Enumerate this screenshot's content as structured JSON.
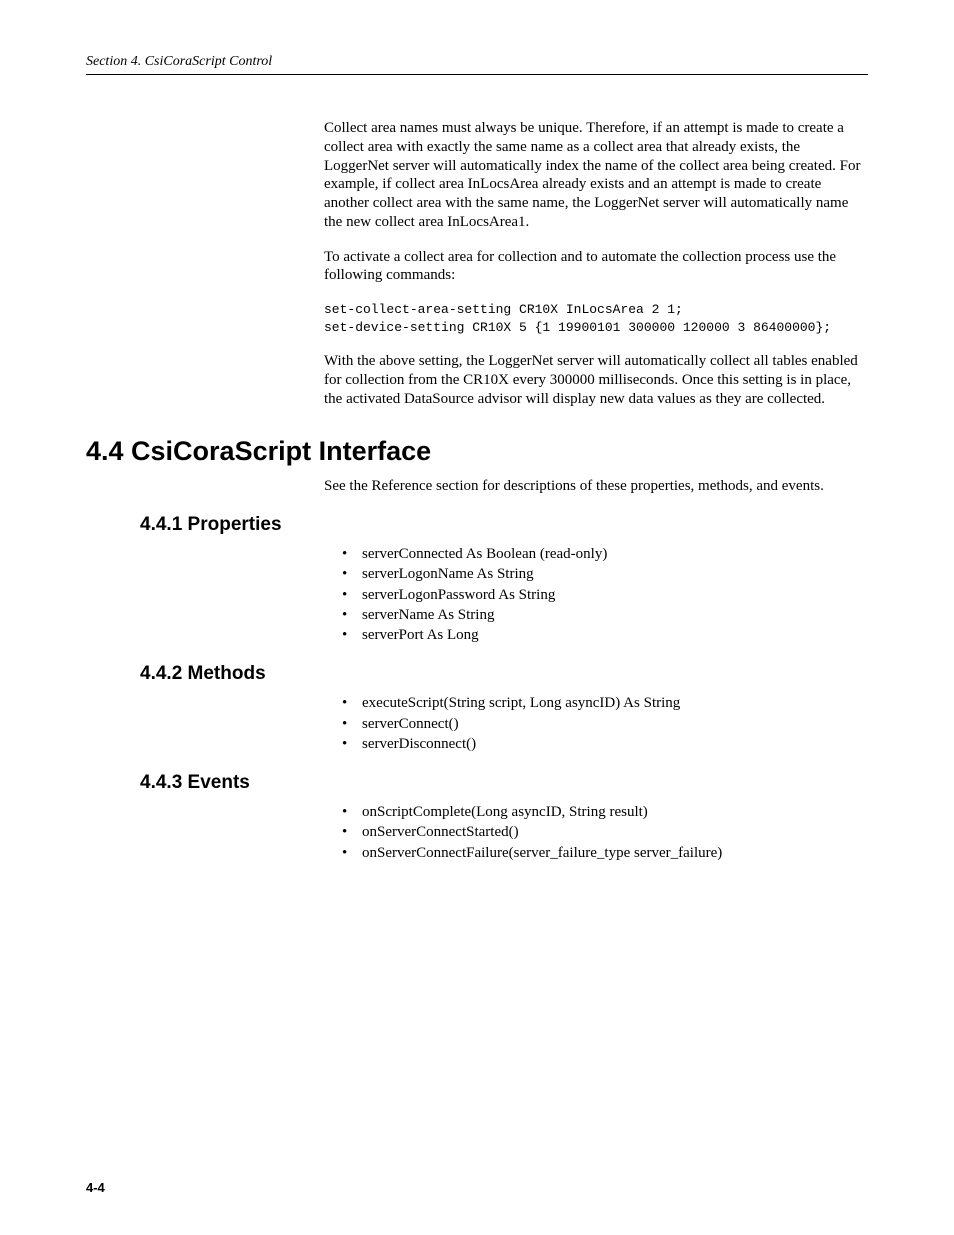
{
  "header": {
    "text": "Section 4.  CsiCoraScript Control"
  },
  "content": {
    "para1": "Collect area names must always be unique.  Therefore, if an attempt is made to create a collect area with exactly the same name as a collect area that already exists, the LoggerNet server will automatically index the name of the collect area being created.  For example, if collect area InLocsArea already exists and an attempt is made to create another collect area with the same name, the LoggerNet server will automatically name the new collect area InLocsArea1.",
    "para2": "To activate a collect area for collection and to automate the collection process use the following commands:",
    "code": "set-collect-area-setting CR10X InLocsArea 2 1;\nset-device-setting CR10X 5 {1 19900101 300000 120000 3 86400000};",
    "para3": "With the above setting, the LoggerNet server will automatically collect all tables enabled for collection from the CR10X every 300000 milliseconds.  Once this setting is in place, the activated DataSource advisor will display new data values as they are collected."
  },
  "section": {
    "title": "4.4  CsiCoraScript Interface",
    "intro": "See the Reference section for descriptions of these properties, methods, and events.",
    "sub1": {
      "title": "4.4.1  Properties",
      "items": [
        "serverConnected As Boolean (read-only)",
        "serverLogonName As String",
        "serverLogonPassword As String",
        "serverName As String",
        "serverPort As Long"
      ]
    },
    "sub2": {
      "title": "4.4.2  Methods",
      "items": [
        "executeScript(String script, Long asyncID) As String",
        "serverConnect()",
        "serverDisconnect()"
      ]
    },
    "sub3": {
      "title": "4.4.3  Events",
      "items": [
        "onScriptComplete(Long asyncID, String result)",
        "onServerConnectStarted()",
        "onServerConnectFailure(server_failure_type server_failure)"
      ]
    }
  },
  "footer": {
    "pagenum": "4-4"
  }
}
